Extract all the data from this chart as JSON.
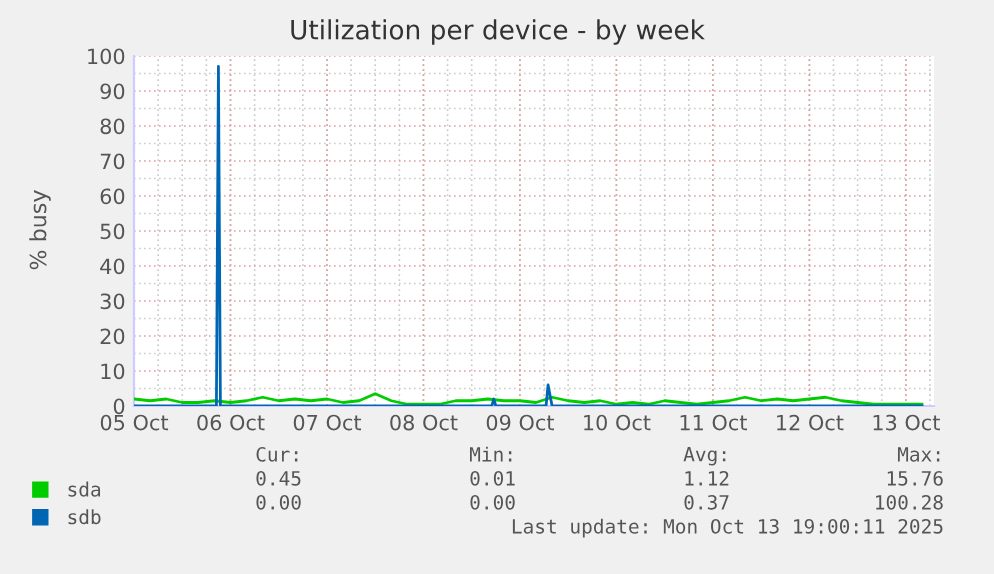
{
  "chart_data": {
    "type": "line",
    "title": "Utilization per device - by week",
    "ylabel": "% busy",
    "xlim": [
      "2025-10-05T00:00",
      "2025-10-13T07:00"
    ],
    "xticks": [
      {
        "value": "2025-10-05",
        "label": "05 Oct"
      },
      {
        "value": "2025-10-06",
        "label": "06 Oct"
      },
      {
        "value": "2025-10-07",
        "label": "07 Oct"
      },
      {
        "value": "2025-10-08",
        "label": "08 Oct"
      },
      {
        "value": "2025-10-09",
        "label": "09 Oct"
      },
      {
        "value": "2025-10-10",
        "label": "10 Oct"
      },
      {
        "value": "2025-10-11",
        "label": "11 Oct"
      },
      {
        "value": "2025-10-12",
        "label": "12 Oct"
      },
      {
        "value": "2025-10-13",
        "label": "13 Oct"
      }
    ],
    "ylim": [
      0,
      100
    ],
    "yticks": [
      0,
      10,
      20,
      30,
      40,
      50,
      60,
      70,
      80,
      90,
      100
    ],
    "grid": true,
    "legend": "bottom",
    "series": [
      {
        "name": "sda",
        "color": "#00cc00",
        "x": [
          "2025-10-05T00:00",
          "2025-10-05T04:00",
          "2025-10-05T08:00",
          "2025-10-05T12:00",
          "2025-10-05T16:00",
          "2025-10-05T20:00",
          "2025-10-06T00:00",
          "2025-10-06T04:00",
          "2025-10-06T08:00",
          "2025-10-06T12:00",
          "2025-10-06T16:00",
          "2025-10-06T20:00",
          "2025-10-07T00:00",
          "2025-10-07T04:00",
          "2025-10-07T08:00",
          "2025-10-07T12:00",
          "2025-10-07T16:00",
          "2025-10-07T20:00",
          "2025-10-08T00:00",
          "2025-10-08T04:00",
          "2025-10-08T08:00",
          "2025-10-08T12:00",
          "2025-10-08T16:00",
          "2025-10-08T20:00",
          "2025-10-09T00:00",
          "2025-10-09T04:00",
          "2025-10-09T08:00",
          "2025-10-09T12:00",
          "2025-10-09T16:00",
          "2025-10-09T20:00",
          "2025-10-10T00:00",
          "2025-10-10T04:00",
          "2025-10-10T08:00",
          "2025-10-10T12:00",
          "2025-10-10T16:00",
          "2025-10-10T20:00",
          "2025-10-11T00:00",
          "2025-10-11T04:00",
          "2025-10-11T08:00",
          "2025-10-11T12:00",
          "2025-10-11T16:00",
          "2025-10-11T20:00",
          "2025-10-12T00:00",
          "2025-10-12T04:00",
          "2025-10-12T08:00",
          "2025-10-12T12:00",
          "2025-10-12T16:00",
          "2025-10-12T20:00",
          "2025-10-13T00:00",
          "2025-10-13T04:00"
        ],
        "values": [
          2,
          1.5,
          2,
          1,
          1,
          1.5,
          1,
          1.5,
          2.5,
          1.5,
          2,
          1.5,
          2,
          1,
          1.5,
          3.5,
          1.5,
          0.5,
          0.5,
          0.5,
          1.5,
          1.5,
          2,
          1.5,
          1.5,
          1,
          2.5,
          1.5,
          1,
          1.5,
          0.5,
          1,
          0.5,
          1.5,
          1,
          0.5,
          1,
          1.5,
          2.5,
          1.5,
          2,
          1.5,
          2,
          2.5,
          1.5,
          1,
          0.5,
          0.5,
          0.5,
          0.5
        ]
      },
      {
        "name": "sdb",
        "color": "#0066b3",
        "x": [
          "2025-10-05T00:00",
          "2025-10-05T20:30",
          "2025-10-05T21:00",
          "2025-10-05T21:30",
          "2025-10-08T17:00",
          "2025-10-08T17:30",
          "2025-10-08T18:00",
          "2025-10-09T06:30",
          "2025-10-09T07:00",
          "2025-10-09T08:00",
          "2025-10-13T04:00"
        ],
        "values": [
          0,
          0,
          97,
          0,
          0,
          2,
          0,
          0,
          6,
          0,
          0
        ]
      }
    ],
    "annotations": [
      "Cur:",
      "Min:",
      "Avg:",
      "Max:",
      "0.45",
      "0.01",
      "1.12",
      "15.76",
      "0.00",
      "0.00",
      "0.37",
      "100.28",
      "Last update: Mon Oct 13 19:00:11 2025"
    ]
  }
}
